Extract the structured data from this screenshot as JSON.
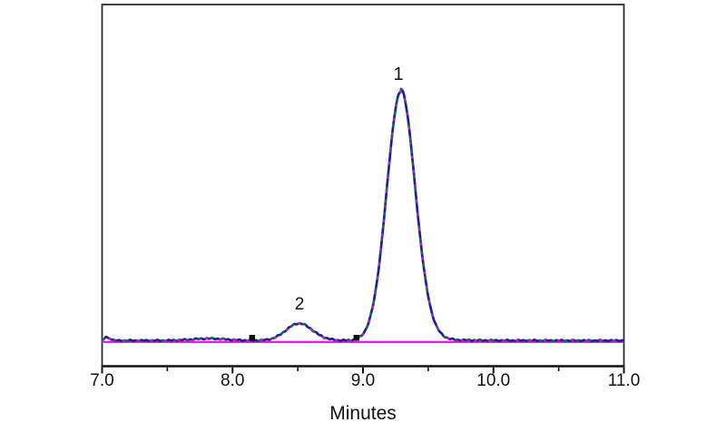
{
  "figure": {
    "xlabel": "Minutes",
    "peak_label_1": "1",
    "peak_label_2": "2"
  },
  "chart_data": {
    "type": "line",
    "title": "",
    "xlabel": "Minutes",
    "ylabel": "",
    "xlim": [
      7.0,
      11.0
    ],
    "x_major_ticks": [
      7.0,
      8.0,
      9.0,
      10.0,
      11.0
    ],
    "x_minor_ticks": [
      7.5,
      8.5,
      9.5,
      10.5
    ],
    "x_tick_labels": [
      "7.0",
      "8.0",
      "9.0",
      "10.0",
      "11.0"
    ],
    "grid": false,
    "legend_position": "none",
    "description": "Chromatogram with overlaid replicate traces, flat magenta baseline and two labeled peaks",
    "trace_colors": [
      "#201e9e",
      "#0f7a32",
      "#c020c0"
    ],
    "baseline_color": "#ff00ff",
    "frame_color": "#2e2e2e",
    "peaks": [
      {
        "label": "1",
        "retention_min": 9.29,
        "relative_height": 1.0,
        "sigma_min": 0.108,
        "tailing": 0.18
      },
      {
        "label": "2",
        "retention_min": 8.51,
        "relative_height": 0.069,
        "sigma_min": 0.1,
        "tailing": 0.3
      }
    ],
    "integration_markers_min": [
      8.15,
      8.95
    ],
    "baseline_disturbances": [
      {
        "t_min": 7.03,
        "relative_height": 0.015,
        "sigma_min": 0.01
      },
      {
        "t_min": 7.06,
        "relative_height": 0.009,
        "sigma_min": 0.014
      },
      {
        "t_min": 7.82,
        "relative_height": 0.008,
        "sigma_min": 0.13
      }
    ]
  }
}
